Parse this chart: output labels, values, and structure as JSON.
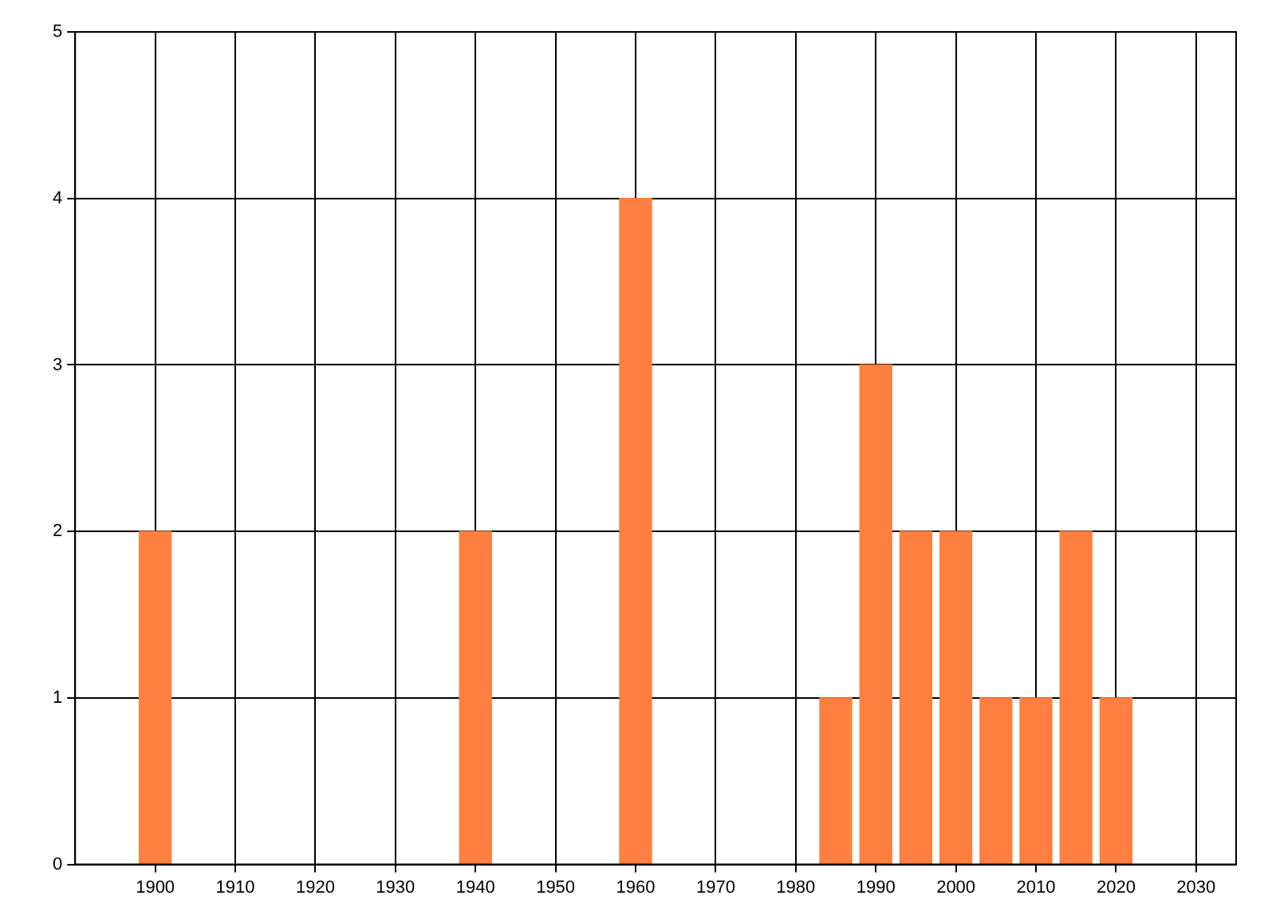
{
  "chart_data": {
    "type": "bar",
    "x": [
      1900,
      1940,
      1960,
      1985,
      1990,
      1995,
      2000,
      2005,
      2010,
      2015,
      2020
    ],
    "values": [
      2,
      2,
      4,
      1,
      3,
      2,
      2,
      1,
      1,
      2,
      1
    ],
    "color": "#ff7f40",
    "xlim": [
      1890,
      2035
    ],
    "xticks": [
      1900,
      1910,
      1920,
      1930,
      1940,
      1950,
      1960,
      1970,
      1980,
      1990,
      2000,
      2010,
      2020,
      2030
    ],
    "ylim": [
      0,
      5
    ],
    "yticks": [
      0,
      1,
      2,
      3,
      4,
      5
    ],
    "grid": true
  }
}
